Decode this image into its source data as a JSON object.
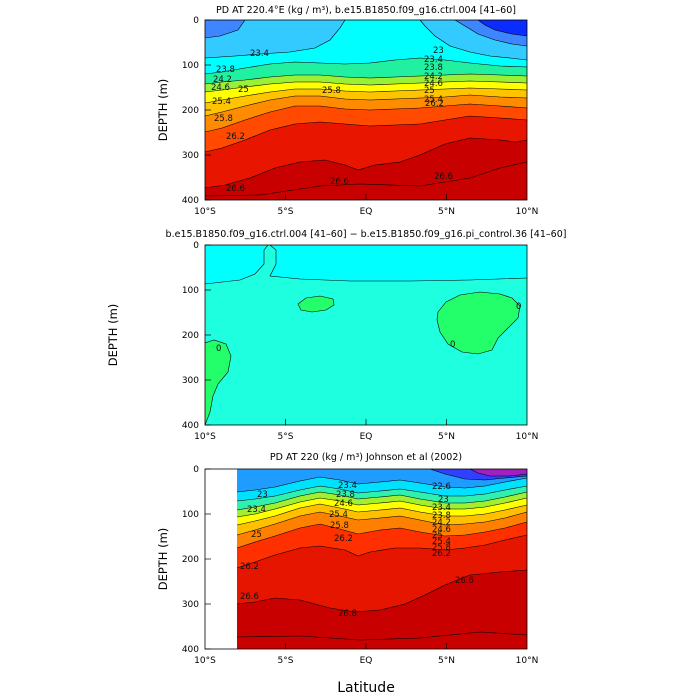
{
  "chart_data": [
    {
      "type": "heatmap",
      "title": "PD AT 220.4°E (kg / m³), b.e15.B1850.f09_g16.ctrl.004 [41–60]",
      "xlabel": "",
      "ylabel": "DEPTH  (m)",
      "x_ticks": [
        "10°S",
        "5°S",
        "EQ",
        "5°N",
        "10°N"
      ],
      "y_ticks": [
        "0",
        "100",
        "200",
        "300",
        "400"
      ],
      "xlim": [
        -10,
        10
      ],
      "ylim": [
        400,
        0
      ],
      "contour_labels": [
        "23.4",
        "23.8",
        "24.2",
        "24.6",
        "25",
        "25.4",
        "25.8",
        "26.2",
        "26.6",
        "23",
        "23.4",
        "23.8",
        "24.2",
        "24.6",
        "25",
        "25.4",
        "25.8",
        "26.2",
        "26.6",
        "26.6"
      ],
      "colors": [
        "#0a2cff",
        "#3d86ff",
        "#33cbff",
        "#00ffff",
        "#20f0a0",
        "#9af035",
        "#ffff00",
        "#ffc400",
        "#ff8c00",
        "#ff4a00",
        "#e81500",
        "#c80000"
      ]
    },
    {
      "type": "heatmap",
      "title": "b.e15.B1850.f09_g16.ctrl.004 [41–60] − b.e15.B1850.f09_g16.pi_control.36 [41–60]",
      "xlabel": "",
      "ylabel": "DEPTH  (m)",
      "x_ticks": [
        "10°S",
        "5°S",
        "EQ",
        "5°N",
        "10°N"
      ],
      "y_ticks": [
        "0",
        "100",
        "200",
        "300",
        "400"
      ],
      "xlim": [
        -10,
        10
      ],
      "ylim": [
        400,
        0
      ],
      "contour_labels": [
        "0",
        "0",
        "0"
      ],
      "colors": [
        "#00ffff",
        "#1effe0",
        "#22ff6a"
      ]
    },
    {
      "type": "heatmap",
      "title": "PD AT 220 (kg / m³) Johnson et al (2002)",
      "xlabel": "Latitude",
      "ylabel": "DEPTH  (m)",
      "x_ticks": [
        "10°S",
        "5°S",
        "EQ",
        "5°N",
        "10°N"
      ],
      "y_ticks": [
        "0",
        "100",
        "200",
        "300",
        "400"
      ],
      "xlim": [
        -10,
        10
      ],
      "ylim": [
        400,
        0
      ],
      "data_xlim": [
        -8,
        10
      ],
      "contour_labels": [
        "23",
        "23.4",
        "25",
        "26.2",
        "26.6",
        "26.8",
        "23.4",
        "23.8",
        "24.6",
        "25.4",
        "25.8",
        "26.2",
        "22.6",
        "23",
        "23.4",
        "23.8",
        "24.2",
        "24.6",
        "25",
        "25.4",
        "25.8",
        "26.2",
        "26.6"
      ],
      "colors": [
        "#a020c0",
        "#3040ff",
        "#1e9cff",
        "#00e0ff",
        "#30f0b0",
        "#a0f030",
        "#ffff00",
        "#ffc000",
        "#ff8000",
        "#ff3000",
        "#e61500",
        "#c80000"
      ]
    }
  ]
}
